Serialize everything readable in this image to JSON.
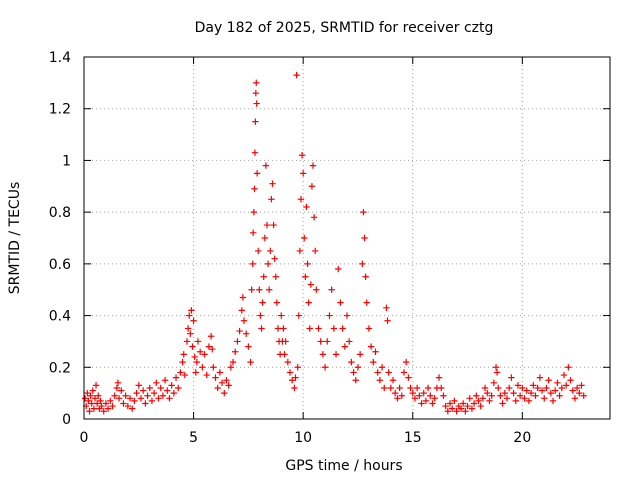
{
  "chart_data": {
    "type": "scatter",
    "title": "Day 182 of 2025, SRMTID for receiver cztg",
    "xlabel": "GPS time / hours",
    "ylabel": "SRMTID / TECUs",
    "xlim": [
      0,
      24
    ],
    "ylim": [
      0,
      1.4
    ],
    "x_ticks": [
      0,
      5,
      10,
      15,
      20
    ],
    "x_tick_labels": [
      "0",
      "5",
      "10",
      "15",
      "20"
    ],
    "y_ticks": [
      0,
      0.2,
      0.4,
      0.6,
      0.8,
      1.0,
      1.2,
      1.4
    ],
    "y_tick_labels": [
      "0",
      "0.2",
      "0.4",
      "0.6",
      "0.8",
      "1",
      "1.2",
      "1.4"
    ],
    "grid": true,
    "marker": "+",
    "series": [
      {
        "name": "SRMTID",
        "color": "#ff0000",
        "points": [
          [
            0.05,
            0.08
          ],
          [
            0.1,
            0.05
          ],
          [
            0.15,
            0.1
          ],
          [
            0.2,
            0.07
          ],
          [
            0.25,
            0.03
          ],
          [
            0.3,
            0.09
          ],
          [
            0.35,
            0.06
          ],
          [
            0.4,
            0.11
          ],
          [
            0.45,
            0.04
          ],
          [
            0.5,
            0.08
          ],
          [
            0.55,
            0.13
          ],
          [
            0.6,
            0.06
          ],
          [
            0.65,
            0.09
          ],
          [
            0.7,
            0.04
          ],
          [
            0.75,
            0.07
          ],
          [
            0.8,
            0.05
          ],
          [
            0.9,
            0.03
          ],
          [
            1.0,
            0.06
          ],
          [
            1.1,
            0.04
          ],
          [
            1.2,
            0.07
          ],
          [
            1.3,
            0.05
          ],
          [
            1.4,
            0.09
          ],
          [
            1.5,
            0.12
          ],
          [
            1.55,
            0.14
          ],
          [
            1.6,
            0.08
          ],
          [
            1.7,
            0.11
          ],
          [
            1.8,
            0.06
          ],
          [
            1.9,
            0.09
          ],
          [
            2.0,
            0.05
          ],
          [
            2.1,
            0.08
          ],
          [
            2.2,
            0.04
          ],
          [
            2.3,
            0.07
          ],
          [
            2.4,
            0.1
          ],
          [
            2.5,
            0.13
          ],
          [
            2.6,
            0.08
          ],
          [
            2.7,
            0.11
          ],
          [
            2.8,
            0.06
          ],
          [
            2.9,
            0.09
          ],
          [
            3.0,
            0.12
          ],
          [
            3.1,
            0.07
          ],
          [
            3.2,
            0.1
          ],
          [
            3.3,
            0.14
          ],
          [
            3.4,
            0.08
          ],
          [
            3.5,
            0.12
          ],
          [
            3.6,
            0.09
          ],
          [
            3.7,
            0.15
          ],
          [
            3.8,
            0.11
          ],
          [
            3.9,
            0.08
          ],
          [
            4.0,
            0.13
          ],
          [
            4.1,
            0.1
          ],
          [
            4.2,
            0.16
          ],
          [
            4.3,
            0.12
          ],
          [
            4.4,
            0.18
          ],
          [
            4.5,
            0.22
          ],
          [
            4.55,
            0.25
          ],
          [
            4.6,
            0.17
          ],
          [
            4.7,
            0.3
          ],
          [
            4.75,
            0.35
          ],
          [
            4.8,
            0.4
          ],
          [
            4.85,
            0.33
          ],
          [
            4.9,
            0.42
          ],
          [
            4.95,
            0.28
          ],
          [
            5.0,
            0.38
          ],
          [
            5.05,
            0.24
          ],
          [
            5.1,
            0.18
          ],
          [
            5.15,
            0.22
          ],
          [
            5.2,
            0.3
          ],
          [
            5.3,
            0.26
          ],
          [
            5.4,
            0.2
          ],
          [
            5.5,
            0.25
          ],
          [
            5.6,
            0.17
          ],
          [
            5.7,
            0.28
          ],
          [
            5.8,
            0.32
          ],
          [
            5.85,
            0.27
          ],
          [
            5.9,
            0.2
          ],
          [
            6.0,
            0.16
          ],
          [
            6.1,
            0.12
          ],
          [
            6.2,
            0.18
          ],
          [
            6.3,
            0.14
          ],
          [
            6.4,
            0.1
          ],
          [
            6.5,
            0.15
          ],
          [
            6.6,
            0.13
          ],
          [
            6.7,
            0.2
          ],
          [
            6.8,
            0.22
          ],
          [
            6.9,
            0.26
          ],
          [
            7.0,
            0.3
          ],
          [
            7.1,
            0.34
          ],
          [
            7.2,
            0.42
          ],
          [
            7.25,
            0.47
          ],
          [
            7.3,
            0.38
          ],
          [
            7.4,
            0.33
          ],
          [
            7.5,
            0.28
          ],
          [
            7.6,
            0.22
          ],
          [
            7.65,
            0.5
          ],
          [
            7.7,
            0.6
          ],
          [
            7.72,
            0.72
          ],
          [
            7.75,
            0.8
          ],
          [
            7.78,
            0.89
          ],
          [
            7.8,
            1.03
          ],
          [
            7.82,
            1.15
          ],
          [
            7.84,
            1.26
          ],
          [
            7.86,
            1.3
          ],
          [
            7.88,
            1.22
          ],
          [
            7.9,
            0.95
          ],
          [
            7.95,
            0.65
          ],
          [
            8.0,
            0.5
          ],
          [
            8.05,
            0.4
          ],
          [
            8.1,
            0.35
          ],
          [
            8.15,
            0.45
          ],
          [
            8.2,
            0.55
          ],
          [
            8.25,
            0.7
          ],
          [
            8.3,
            0.98
          ],
          [
            8.35,
            0.75
          ],
          [
            8.4,
            0.6
          ],
          [
            8.45,
            0.5
          ],
          [
            8.5,
            0.65
          ],
          [
            8.55,
            0.85
          ],
          [
            8.6,
            0.91
          ],
          [
            8.65,
            0.75
          ],
          [
            8.7,
            0.62
          ],
          [
            8.75,
            0.55
          ],
          [
            8.8,
            0.45
          ],
          [
            8.85,
            0.35
          ],
          [
            8.9,
            0.3
          ],
          [
            8.95,
            0.25
          ],
          [
            9.0,
            0.4
          ],
          [
            9.05,
            0.3
          ],
          [
            9.1,
            0.35
          ],
          [
            9.15,
            0.25
          ],
          [
            9.2,
            0.3
          ],
          [
            9.3,
            0.22
          ],
          [
            9.4,
            0.18
          ],
          [
            9.5,
            0.15
          ],
          [
            9.6,
            0.12
          ],
          [
            9.65,
            0.16
          ],
          [
            9.7,
            1.33
          ],
          [
            9.75,
            0.2
          ],
          [
            9.8,
            0.4
          ],
          [
            9.85,
            0.65
          ],
          [
            9.9,
            0.85
          ],
          [
            9.95,
            1.02
          ],
          [
            10.0,
            0.95
          ],
          [
            10.05,
            0.7
          ],
          [
            10.1,
            0.55
          ],
          [
            10.15,
            0.82
          ],
          [
            10.2,
            0.6
          ],
          [
            10.25,
            0.45
          ],
          [
            10.3,
            0.35
          ],
          [
            10.35,
            0.52
          ],
          [
            10.4,
            0.9
          ],
          [
            10.45,
            0.98
          ],
          [
            10.5,
            0.78
          ],
          [
            10.55,
            0.65
          ],
          [
            10.6,
            0.5
          ],
          [
            10.7,
            0.35
          ],
          [
            10.8,
            0.3
          ],
          [
            10.9,
            0.25
          ],
          [
            11.0,
            0.2
          ],
          [
            11.1,
            0.3
          ],
          [
            11.2,
            0.4
          ],
          [
            11.3,
            0.5
          ],
          [
            11.4,
            0.35
          ],
          [
            11.5,
            0.25
          ],
          [
            11.6,
            0.58
          ],
          [
            11.7,
            0.45
          ],
          [
            11.8,
            0.35
          ],
          [
            11.9,
            0.28
          ],
          [
            12.0,
            0.4
          ],
          [
            12.1,
            0.3
          ],
          [
            12.2,
            0.22
          ],
          [
            12.3,
            0.18
          ],
          [
            12.4,
            0.15
          ],
          [
            12.5,
            0.2
          ],
          [
            12.6,
            0.25
          ],
          [
            12.7,
            0.6
          ],
          [
            12.75,
            0.8
          ],
          [
            12.8,
            0.7
          ],
          [
            12.85,
            0.55
          ],
          [
            12.9,
            0.45
          ],
          [
            13.0,
            0.35
          ],
          [
            13.1,
            0.28
          ],
          [
            13.2,
            0.22
          ],
          [
            13.3,
            0.26
          ],
          [
            13.4,
            0.18
          ],
          [
            13.5,
            0.15
          ],
          [
            13.6,
            0.2
          ],
          [
            13.7,
            0.12
          ],
          [
            13.8,
            0.43
          ],
          [
            13.85,
            0.38
          ],
          [
            13.9,
            0.18
          ],
          [
            14.0,
            0.12
          ],
          [
            14.1,
            0.15
          ],
          [
            14.2,
            0.1
          ],
          [
            14.3,
            0.08
          ],
          [
            14.4,
            0.12
          ],
          [
            14.5,
            0.09
          ],
          [
            14.6,
            0.18
          ],
          [
            14.7,
            0.22
          ],
          [
            14.8,
            0.16
          ],
          [
            14.9,
            0.12
          ],
          [
            15.0,
            0.1
          ],
          [
            15.1,
            0.08
          ],
          [
            15.2,
            0.12
          ],
          [
            15.3,
            0.09
          ],
          [
            15.4,
            0.06
          ],
          [
            15.5,
            0.1
          ],
          [
            15.6,
            0.07
          ],
          [
            15.7,
            0.12
          ],
          [
            15.8,
            0.09
          ],
          [
            15.9,
            0.06
          ],
          [
            16.0,
            0.08
          ],
          [
            16.1,
            0.12
          ],
          [
            16.2,
            0.16
          ],
          [
            16.3,
            0.12
          ],
          [
            16.4,
            0.09
          ],
          [
            16.5,
            0.05
          ],
          [
            16.6,
            0.03
          ],
          [
            16.7,
            0.06
          ],
          [
            16.8,
            0.04
          ],
          [
            16.9,
            0.07
          ],
          [
            17.0,
            0.03
          ],
          [
            17.1,
            0.05
          ],
          [
            17.2,
            0.04
          ],
          [
            17.3,
            0.06
          ],
          [
            17.4,
            0.03
          ],
          [
            17.5,
            0.05
          ],
          [
            17.6,
            0.08
          ],
          [
            17.7,
            0.04
          ],
          [
            17.8,
            0.06
          ],
          [
            17.9,
            0.09
          ],
          [
            18.0,
            0.07
          ],
          [
            18.1,
            0.05
          ],
          [
            18.2,
            0.08
          ],
          [
            18.3,
            0.12
          ],
          [
            18.4,
            0.1
          ],
          [
            18.5,
            0.07
          ],
          [
            18.6,
            0.09
          ],
          [
            18.7,
            0.14
          ],
          [
            18.8,
            0.2
          ],
          [
            18.85,
            0.18
          ],
          [
            18.9,
            0.12
          ],
          [
            19.0,
            0.09
          ],
          [
            19.1,
            0.06
          ],
          [
            19.2,
            0.1
          ],
          [
            19.3,
            0.08
          ],
          [
            19.4,
            0.12
          ],
          [
            19.5,
            0.16
          ],
          [
            19.6,
            0.1
          ],
          [
            19.7,
            0.07
          ],
          [
            19.8,
            0.13
          ],
          [
            19.9,
            0.09
          ],
          [
            20.0,
            0.12
          ],
          [
            20.1,
            0.08
          ],
          [
            20.2,
            0.11
          ],
          [
            20.3,
            0.07
          ],
          [
            20.4,
            0.1
          ],
          [
            20.5,
            0.13
          ],
          [
            20.6,
            0.09
          ],
          [
            20.7,
            0.12
          ],
          [
            20.8,
            0.16
          ],
          [
            20.9,
            0.11
          ],
          [
            21.0,
            0.08
          ],
          [
            21.1,
            0.12
          ],
          [
            21.2,
            0.15
          ],
          [
            21.3,
            0.1
          ],
          [
            21.4,
            0.07
          ],
          [
            21.5,
            0.11
          ],
          [
            21.6,
            0.14
          ],
          [
            21.7,
            0.09
          ],
          [
            21.8,
            0.12
          ],
          [
            21.9,
            0.17
          ],
          [
            22.0,
            0.13
          ],
          [
            22.1,
            0.2
          ],
          [
            22.2,
            0.15
          ],
          [
            22.3,
            0.11
          ],
          [
            22.4,
            0.08
          ],
          [
            22.5,
            0.12
          ],
          [
            22.6,
            0.1
          ],
          [
            22.7,
            0.13
          ],
          [
            22.8,
            0.09
          ]
        ]
      }
    ]
  }
}
